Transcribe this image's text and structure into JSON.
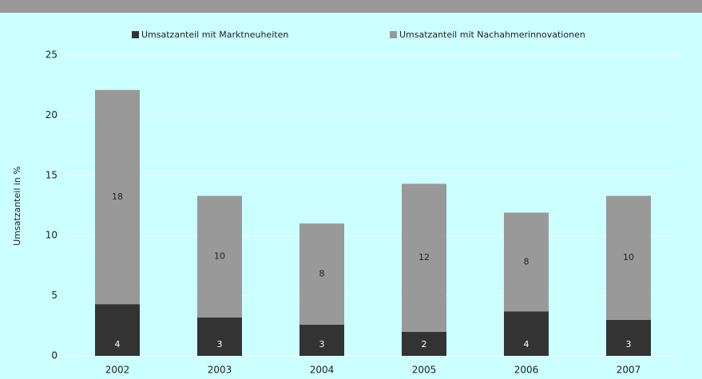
{
  "chart_data": {
    "type": "stacked_bar",
    "y_label": "Umsatzanteil in %",
    "categories": [
      "2002",
      "2003",
      "2004",
      "2005",
      "2006",
      "2007"
    ],
    "series": [
      {
        "name": "Umsatzanteil mit Marktneuheiten",
        "color": "#333333",
        "values": [
          4.3,
          3.2,
          2.6,
          2.0,
          3.7,
          3.0
        ],
        "value_labels": [
          "4",
          "3",
          "3",
          "2",
          "4",
          "3"
        ]
      },
      {
        "name": "Umsatzanteil mit Nachahmerinnovationen",
        "color": "#999999",
        "values": [
          17.8,
          10.1,
          8.4,
          12.3,
          8.2,
          10.3
        ],
        "value_labels": [
          "18",
          "10",
          "8",
          "12",
          "8",
          "10"
        ]
      }
    ],
    "ylim": [
      0,
      25
    ],
    "yticks": [
      0,
      5,
      10,
      15,
      20,
      25
    ],
    "grid": true
  }
}
